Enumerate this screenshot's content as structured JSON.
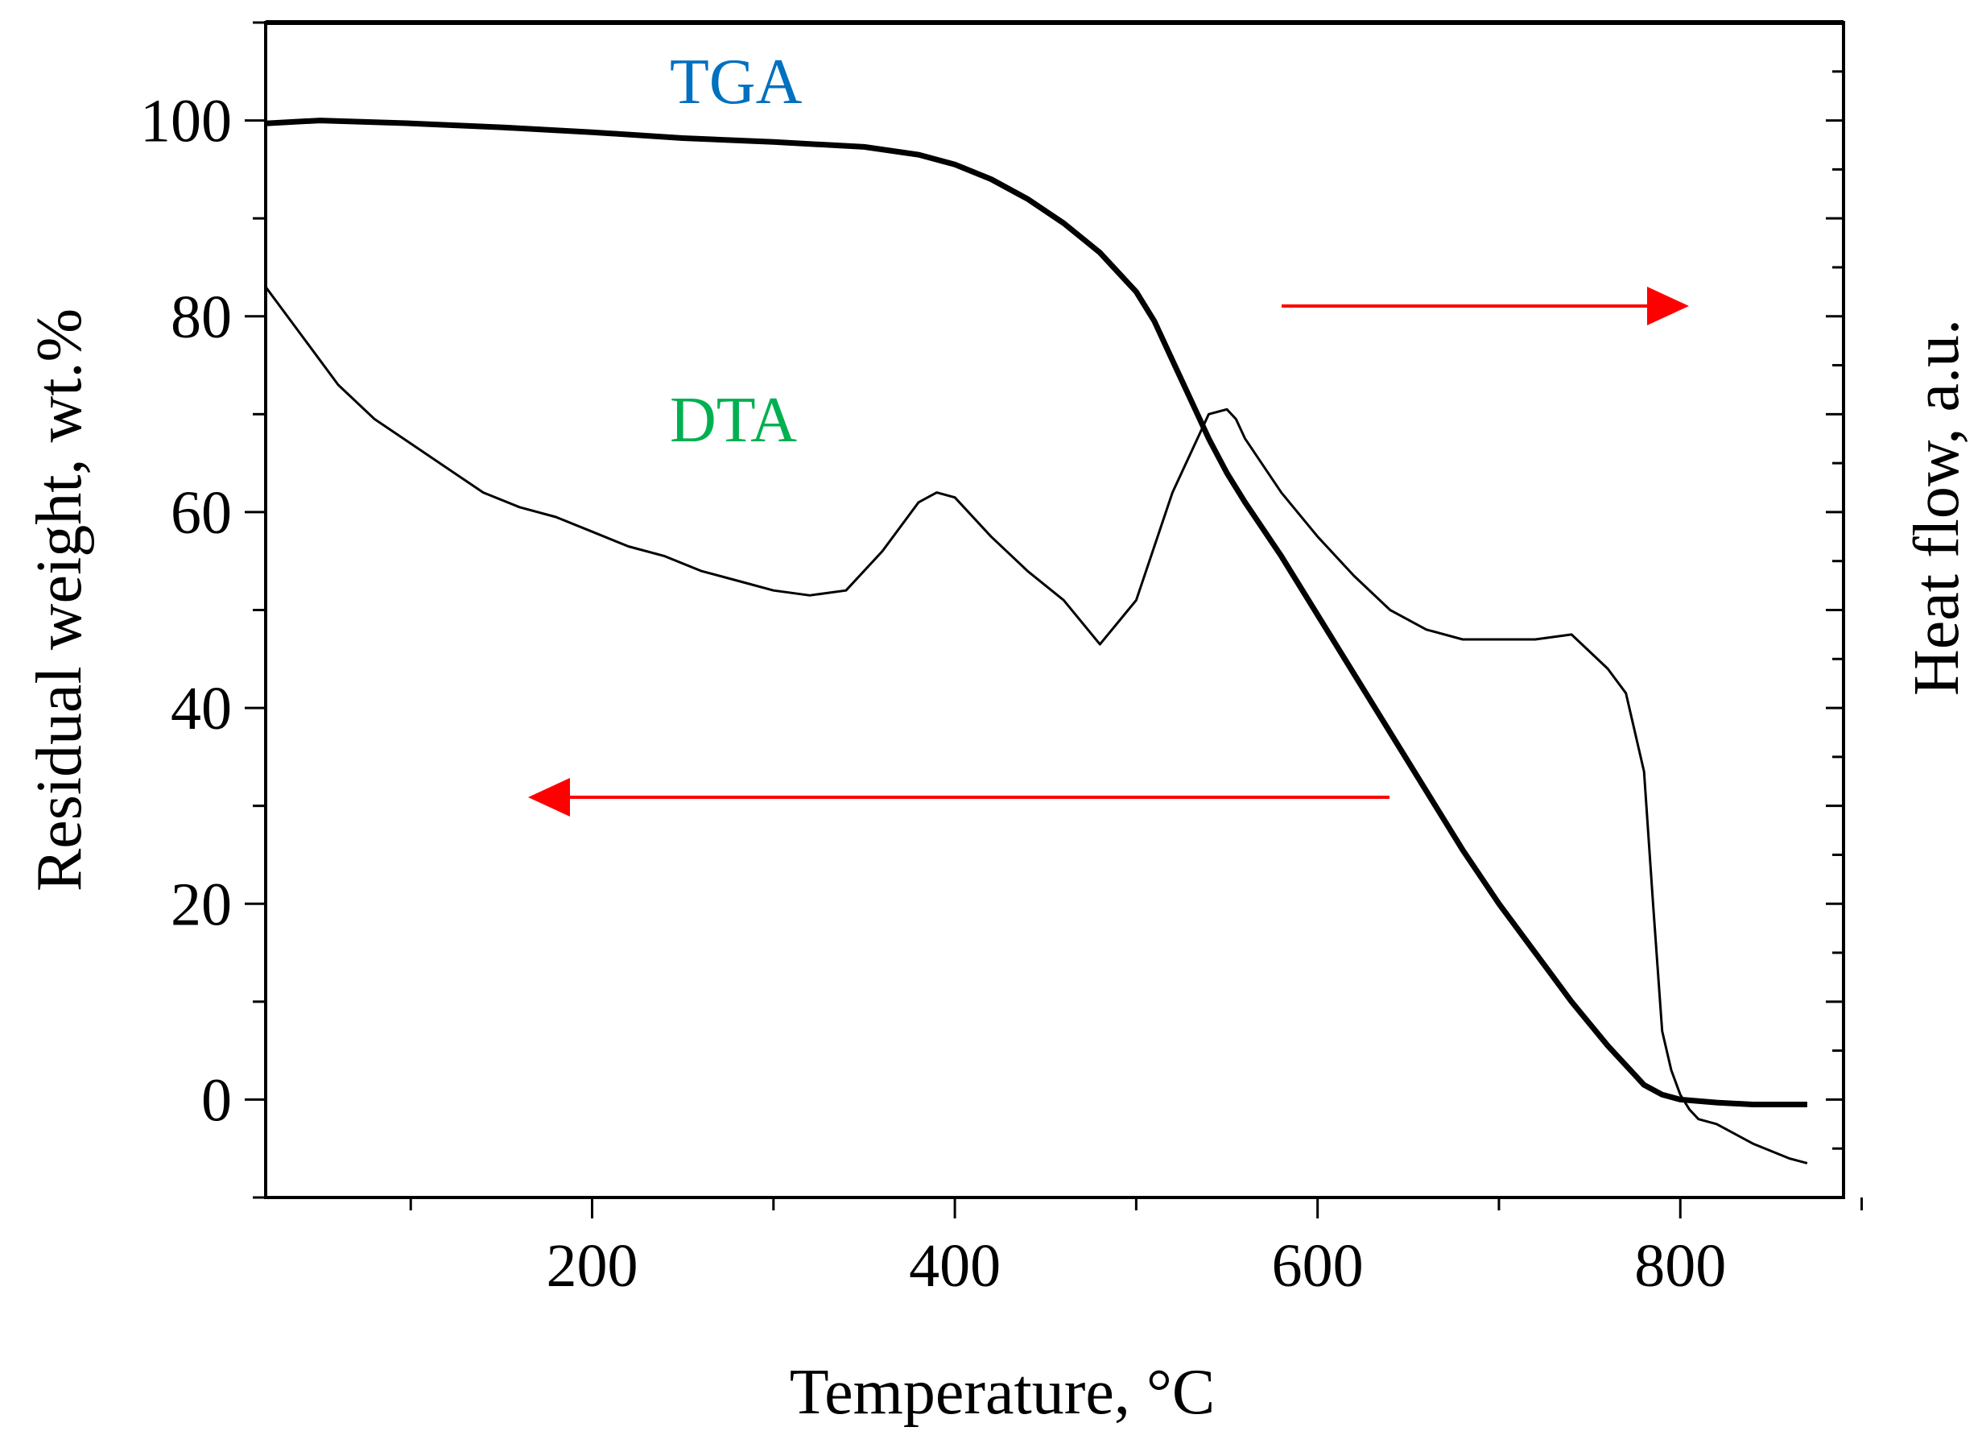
{
  "chart_data": {
    "type": "line",
    "title": "",
    "xlabel": "Temperature, °C",
    "ylabel": "Residual weight, wt.%",
    "y2label": "Heat flow, a.u.",
    "xlim": [
      20,
      890
    ],
    "ylim": [
      -10,
      110
    ],
    "y2lim": [
      -10,
      110
    ],
    "x_ticks": [
      200,
      400,
      600,
      800
    ],
    "y_ticks": [
      0,
      20,
      40,
      60,
      80,
      100
    ],
    "grid": false,
    "legend": "none",
    "series": [
      {
        "name": "TGA",
        "axis": "left",
        "color": "#0070c0",
        "line_color": "#000000",
        "x": [
          20,
          50,
          100,
          150,
          200,
          250,
          300,
          350,
          380,
          400,
          420,
          440,
          460,
          480,
          500,
          510,
          520,
          530,
          540,
          550,
          560,
          580,
          600,
          620,
          640,
          660,
          680,
          700,
          720,
          740,
          760,
          780,
          790,
          800,
          820,
          840,
          860,
          870
        ],
        "values": [
          99.7,
          100,
          99.7,
          99.3,
          98.8,
          98.2,
          97.8,
          97.3,
          96.5,
          95.5,
          94,
          92,
          89.5,
          86.5,
          82.5,
          79.5,
          75.5,
          71.5,
          67.5,
          64,
          61,
          55.5,
          49.5,
          43.5,
          37.5,
          31.5,
          25.5,
          20,
          15,
          10,
          5.5,
          1.5,
          0.5,
          0,
          -0.3,
          -0.5,
          -0.5,
          -0.5
        ]
      },
      {
        "name": "DTA",
        "axis": "right",
        "color": "#00b050",
        "line_color": "#000000",
        "x": [
          20,
          40,
          60,
          80,
          100,
          120,
          140,
          160,
          180,
          200,
          220,
          240,
          260,
          280,
          300,
          320,
          340,
          360,
          380,
          390,
          400,
          420,
          440,
          460,
          480,
          500,
          520,
          540,
          550,
          555,
          560,
          580,
          600,
          620,
          640,
          660,
          680,
          700,
          720,
          740,
          760,
          770,
          780,
          785,
          790,
          795,
          800,
          805,
          810,
          820,
          840,
          860,
          870
        ],
        "values": [
          83,
          78,
          73,
          69.5,
          67,
          64.5,
          62,
          60.5,
          59.5,
          58,
          56.5,
          55.5,
          54,
          53,
          52,
          51.5,
          52,
          56,
          61,
          62,
          61.5,
          57.5,
          54,
          51,
          46.5,
          51,
          62,
          70,
          70.5,
          69.5,
          67.5,
          62,
          57.5,
          53.5,
          50,
          48,
          47,
          47,
          47,
          47.5,
          44,
          41.5,
          33.5,
          20,
          7,
          3,
          0.5,
          -1,
          -2,
          -2.5,
          -4.5,
          -6,
          -6.5
        ]
      }
    ],
    "annotations": [
      {
        "type": "arrow",
        "direction": "right",
        "color": "#ff0000",
        "points_to": "right-axis"
      },
      {
        "type": "arrow",
        "direction": "left",
        "color": "#ff0000",
        "points_to": "left-axis"
      }
    ]
  }
}
